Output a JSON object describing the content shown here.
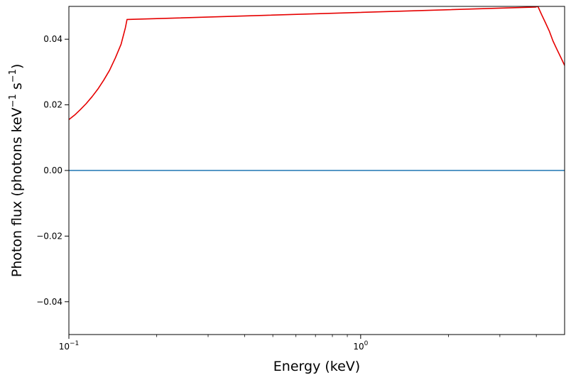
{
  "chart_data": {
    "type": "line",
    "xlabel": "Energy (keV)",
    "ylabel": {
      "prefix": "Photon flux (photons keV",
      "exp1": "−1",
      "middle": " s",
      "exp2": "−1",
      "suffix": ")"
    },
    "x_scale": "log",
    "xlim": [
      0.1,
      5.0
    ],
    "ylim": [
      -0.05,
      0.05
    ],
    "x_ticks": [
      {
        "value": 0.1,
        "base": "10",
        "exp": "−1"
      },
      {
        "value": 1.0,
        "base": "10",
        "exp": "0"
      }
    ],
    "x_minor_ticks": [
      0.2,
      0.3,
      0.4,
      0.5,
      0.6,
      0.7,
      0.8,
      0.9,
      2,
      3,
      4
    ],
    "y_ticks": [
      {
        "value": -0.04,
        "label": "−0.04"
      },
      {
        "value": -0.02,
        "label": "−0.02"
      },
      {
        "value": 0.0,
        "label": "0.00"
      },
      {
        "value": 0.02,
        "label": "0.02"
      },
      {
        "value": 0.04,
        "label": "0.04"
      }
    ],
    "grid": false,
    "series": [
      {
        "color": "#e60000",
        "x": [
          0.1,
          0.1047,
          0.1096,
          0.1147,
          0.1201,
          0.1257,
          0.1316,
          0.1378,
          0.1443,
          0.151,
          0.1562,
          0.1582,
          3.98,
          4.05,
          4.17,
          4.3,
          4.43,
          4.56,
          4.7,
          4.85,
          5.0
        ],
        "y": [
          0.0155,
          0.0169,
          0.0186,
          0.0204,
          0.0225,
          0.0248,
          0.0275,
          0.0305,
          0.0343,
          0.0385,
          0.0435,
          0.046,
          0.0498,
          0.05,
          0.0475,
          0.045,
          0.0425,
          0.0395,
          0.037,
          0.0345,
          0.032
        ]
      },
      {
        "color": "#1f77b4",
        "x": [
          0.1,
          5.0
        ],
        "y": [
          0.0,
          0.0
        ]
      }
    ]
  }
}
